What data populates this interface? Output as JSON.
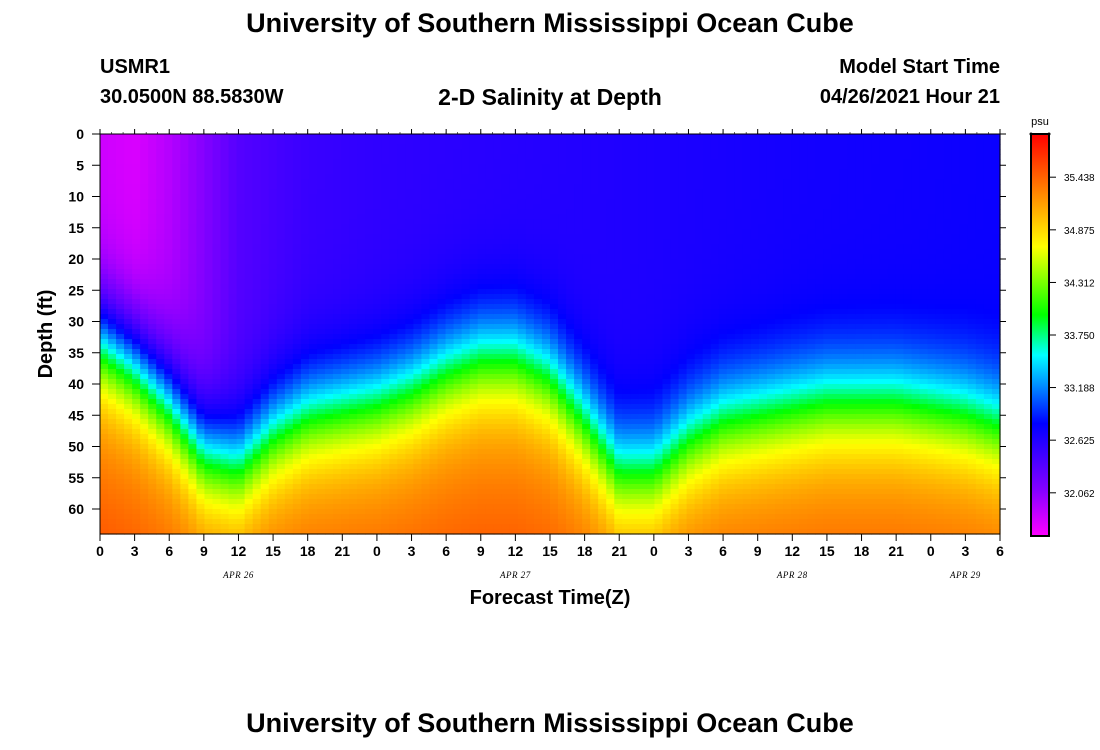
{
  "header": {
    "title": "University of Southern Mississippi Ocean Cube",
    "station_id": "USMR1",
    "station_coords": "30.0500N  88.5830W",
    "chart_title": "2-D Salinity at Depth",
    "model_start_label": "Model Start Time",
    "model_start_value": "04/26/2021 Hour 21"
  },
  "footer": {
    "title": "University of Southern Mississippi Ocean Cube"
  },
  "chart_data": {
    "type": "heatmap",
    "title": "2-D Salinity at Depth",
    "xlabel": "Forecast Time(Z)",
    "ylabel": "Depth (ft)",
    "x_tick_labels": [
      "0",
      "3",
      "6",
      "9",
      "12",
      "15",
      "18",
      "21",
      "0",
      "3",
      "6",
      "9",
      "12",
      "15",
      "18",
      "21",
      "0",
      "3",
      "6",
      "9",
      "12",
      "15",
      "18",
      "21",
      "0",
      "3",
      "6"
    ],
    "date_labels": [
      {
        "text": "APR 26",
        "tick_index": 4
      },
      {
        "text": "APR 27",
        "tick_index": 12
      },
      {
        "text": "APR 28",
        "tick_index": 20
      },
      {
        "text": "APR 29",
        "tick_index": 25
      }
    ],
    "xlim_hours": [
      0,
      78
    ],
    "y_tick_labels": [
      "0",
      "5",
      "10",
      "15",
      "20",
      "25",
      "30",
      "35",
      "40",
      "45",
      "50",
      "55",
      "60"
    ],
    "ylim_ft": [
      0,
      64
    ],
    "y_inverted": true,
    "colorbar": {
      "unit": "psu",
      "range": [
        31.6,
        35.9
      ],
      "labels": [
        "35.438",
        "34.875",
        "34.312",
        "33.750",
        "33.188",
        "32.625",
        "32.062"
      ]
    },
    "halocline_depth_ft": {
      "hours": [
        0,
        3,
        6,
        9,
        12,
        15,
        18,
        21,
        24,
        27,
        30,
        33,
        36,
        39,
        42,
        45,
        48,
        51,
        54,
        57,
        60,
        63,
        66,
        69,
        72,
        75,
        78
      ],
      "depth": [
        33,
        37,
        43,
        51,
        53,
        48,
        45,
        44,
        43,
        41,
        38,
        36,
        36,
        39,
        46,
        54,
        54,
        49,
        46,
        45,
        44,
        43,
        43,
        43,
        44,
        45,
        47
      ]
    },
    "surface_salinity_psu": {
      "hours": [
        0,
        3,
        6,
        9,
        12,
        18,
        24,
        36,
        48,
        60,
        70,
        78
      ],
      "values": [
        31.8,
        31.75,
        31.9,
        32.1,
        32.35,
        32.5,
        32.55,
        32.6,
        32.65,
        32.7,
        32.72,
        32.75
      ]
    },
    "deep_salinity_psu": 35.2
  }
}
